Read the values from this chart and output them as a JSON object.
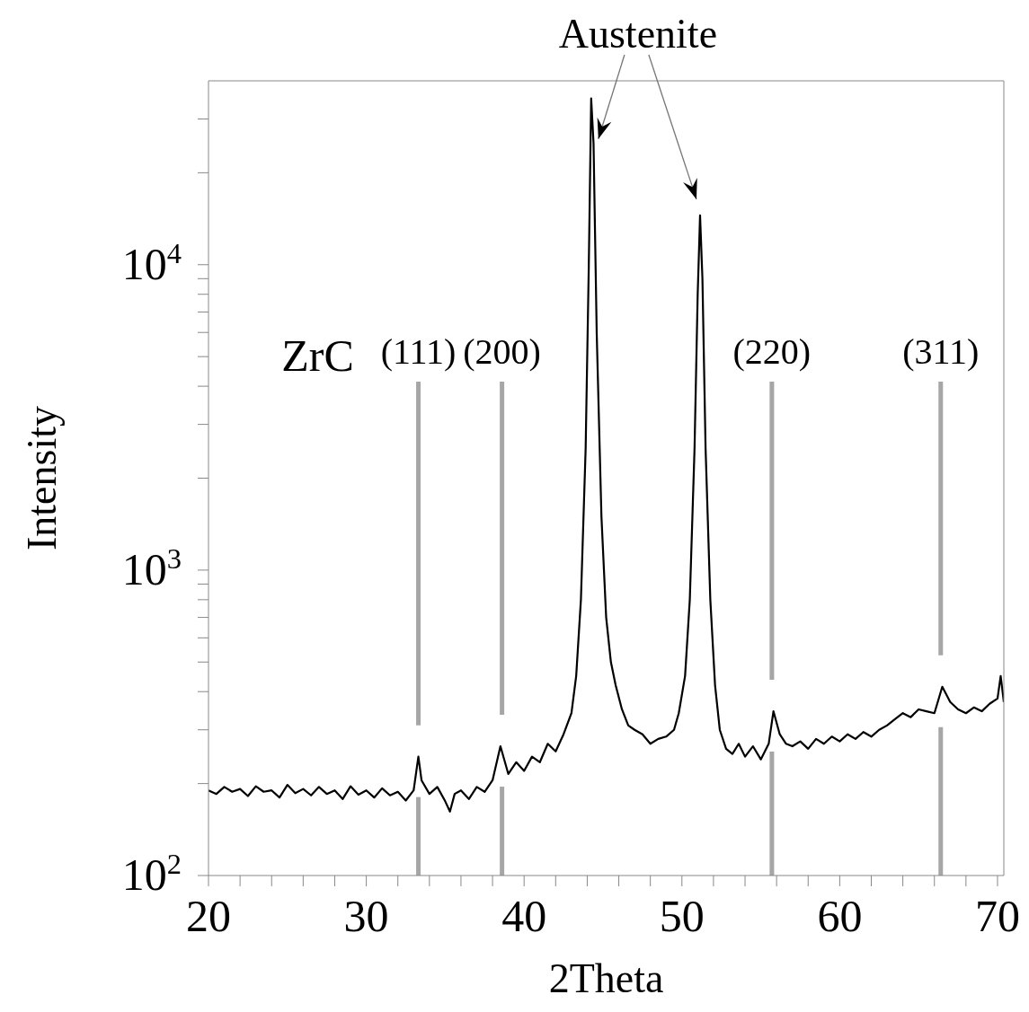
{
  "chart_data": {
    "type": "line",
    "xlabel": "2Theta",
    "ylabel": "Intensity",
    "log": "y",
    "marker": "none",
    "line_style": "solid",
    "xlim": [
      20,
      70.4
    ],
    "ylim": [
      100,
      40000
    ],
    "xticks": [
      20,
      {
        "value": 22,
        "label": null
      },
      {
        "value": 24,
        "label": null
      },
      {
        "value": 26,
        "label": null
      },
      {
        "value": 28,
        "label": null
      },
      30,
      {
        "value": 32,
        "label": null
      },
      {
        "value": 34,
        "label": null
      },
      {
        "value": 36,
        "label": null
      },
      {
        "value": 38,
        "label": null
      },
      40,
      {
        "value": 42,
        "label": null
      },
      {
        "value": 44,
        "label": null
      },
      {
        "value": 46,
        "label": null
      },
      {
        "value": 48,
        "label": null
      },
      50,
      {
        "value": 52,
        "label": null
      },
      {
        "value": 54,
        "label": null
      },
      {
        "value": 56,
        "label": null
      },
      {
        "value": 58,
        "label": null
      },
      60,
      {
        "value": 62,
        "label": null
      },
      {
        "value": 64,
        "label": null
      },
      {
        "value": 66,
        "label": null
      },
      {
        "value": 68,
        "label": null
      },
      70
    ],
    "yticks": [
      {
        "value": 100,
        "label": "10$^{2}$"
      },
      {
        "value": 200,
        "label": null
      },
      {
        "value": 300,
        "label": null
      },
      {
        "value": 400,
        "label": null
      },
      {
        "value": 500,
        "label": null
      },
      {
        "value": 600,
        "label": null
      },
      {
        "value": 700,
        "label": null
      },
      {
        "value": 800,
        "label": null
      },
      {
        "value": 900,
        "label": null
      },
      {
        "value": 1000,
        "label": "10$^{3}$"
      },
      {
        "value": 2000,
        "label": null
      },
      {
        "value": 3000,
        "label": null
      },
      {
        "value": 4000,
        "label": null
      },
      {
        "value": 5000,
        "label": null
      },
      {
        "value": 6000,
        "label": null
      },
      {
        "value": 7000,
        "label": null
      },
      {
        "value": 8000,
        "label": null
      },
      {
        "value": 9000,
        "label": null
      },
      {
        "value": 10000,
        "label": "10$^{4}$"
      },
      {
        "value": 20000,
        "label": null
      },
      {
        "value": 30000,
        "label": null
      }
    ],
    "series": [
      {
        "color": "#000000",
        "x": [
          20,
          20.5,
          21,
          21.5,
          22,
          22.5,
          23,
          23.5,
          24,
          24.5,
          25,
          25.5,
          26,
          26.5,
          27,
          27.5,
          28,
          28.5,
          29,
          29.5,
          30,
          30.5,
          31,
          31.5,
          32,
          32.5,
          33,
          33.3,
          33.5,
          34,
          34.5,
          35,
          35.3,
          35.6,
          36,
          36.5,
          37,
          37.5,
          38,
          38.5,
          39,
          39.5,
          40,
          40.5,
          41,
          41.5,
          42,
          42.5,
          43,
          43.3,
          43.6,
          43.9,
          44.1,
          44.25,
          44.4,
          44.6,
          44.9,
          45.2,
          45.5,
          45.8,
          46.2,
          46.6,
          47,
          47.5,
          48,
          48.5,
          49,
          49.5,
          49.8,
          50.2,
          50.5,
          50.8,
          51,
          51.15,
          51.3,
          51.5,
          51.8,
          52.1,
          52.4,
          52.8,
          53.2,
          53.6,
          54,
          54.5,
          55,
          55.5,
          55.8,
          56.2,
          56.6,
          57,
          57.5,
          58,
          58.5,
          59,
          59.5,
          60,
          60.5,
          61,
          61.5,
          62,
          62.5,
          63,
          63.5,
          64,
          64.5,
          65,
          65.5,
          66,
          66.5,
          67,
          67.5,
          68,
          68.5,
          69,
          69.5,
          70,
          70.2,
          70.4
        ],
        "values": [
          190,
          185,
          195,
          188,
          192,
          182,
          196,
          188,
          190,
          180,
          198,
          186,
          192,
          183,
          195,
          185,
          190,
          178,
          196,
          184,
          190,
          180,
          193,
          183,
          188,
          176,
          190,
          245,
          205,
          185,
          195,
          175,
          162,
          185,
          190,
          178,
          195,
          188,
          205,
          265,
          215,
          235,
          220,
          245,
          235,
          270,
          255,
          290,
          340,
          450,
          800,
          2500,
          10000,
          35000,
          25000,
          6000,
          1500,
          700,
          500,
          420,
          350,
          310,
          300,
          290,
          270,
          280,
          285,
          300,
          340,
          450,
          800,
          2500,
          8000,
          14500,
          9000,
          2500,
          800,
          420,
          300,
          260,
          250,
          270,
          245,
          265,
          240,
          270,
          345,
          290,
          270,
          265,
          275,
          260,
          280,
          270,
          285,
          275,
          290,
          280,
          295,
          285,
          300,
          310,
          325,
          340,
          330,
          350,
          345,
          340,
          415,
          370,
          350,
          340,
          355,
          345,
          365,
          380,
          450,
          370
        ]
      }
    ],
    "ref_lines": [
      {
        "axis": "x",
        "value": 33.3,
        "color": "#a6a6a6"
      },
      {
        "axis": "x",
        "value": 38.6,
        "color": "#a6a6a6"
      },
      {
        "axis": "x",
        "value": 55.7,
        "color": "#a6a6a6"
      },
      {
        "axis": "x",
        "value": 66.4,
        "color": "#a6a6a6"
      }
    ],
    "annotations": [
      "ZrC",
      "Austenite",
      "(111)",
      "(200)",
      "(220)",
      "(311)"
    ]
  }
}
